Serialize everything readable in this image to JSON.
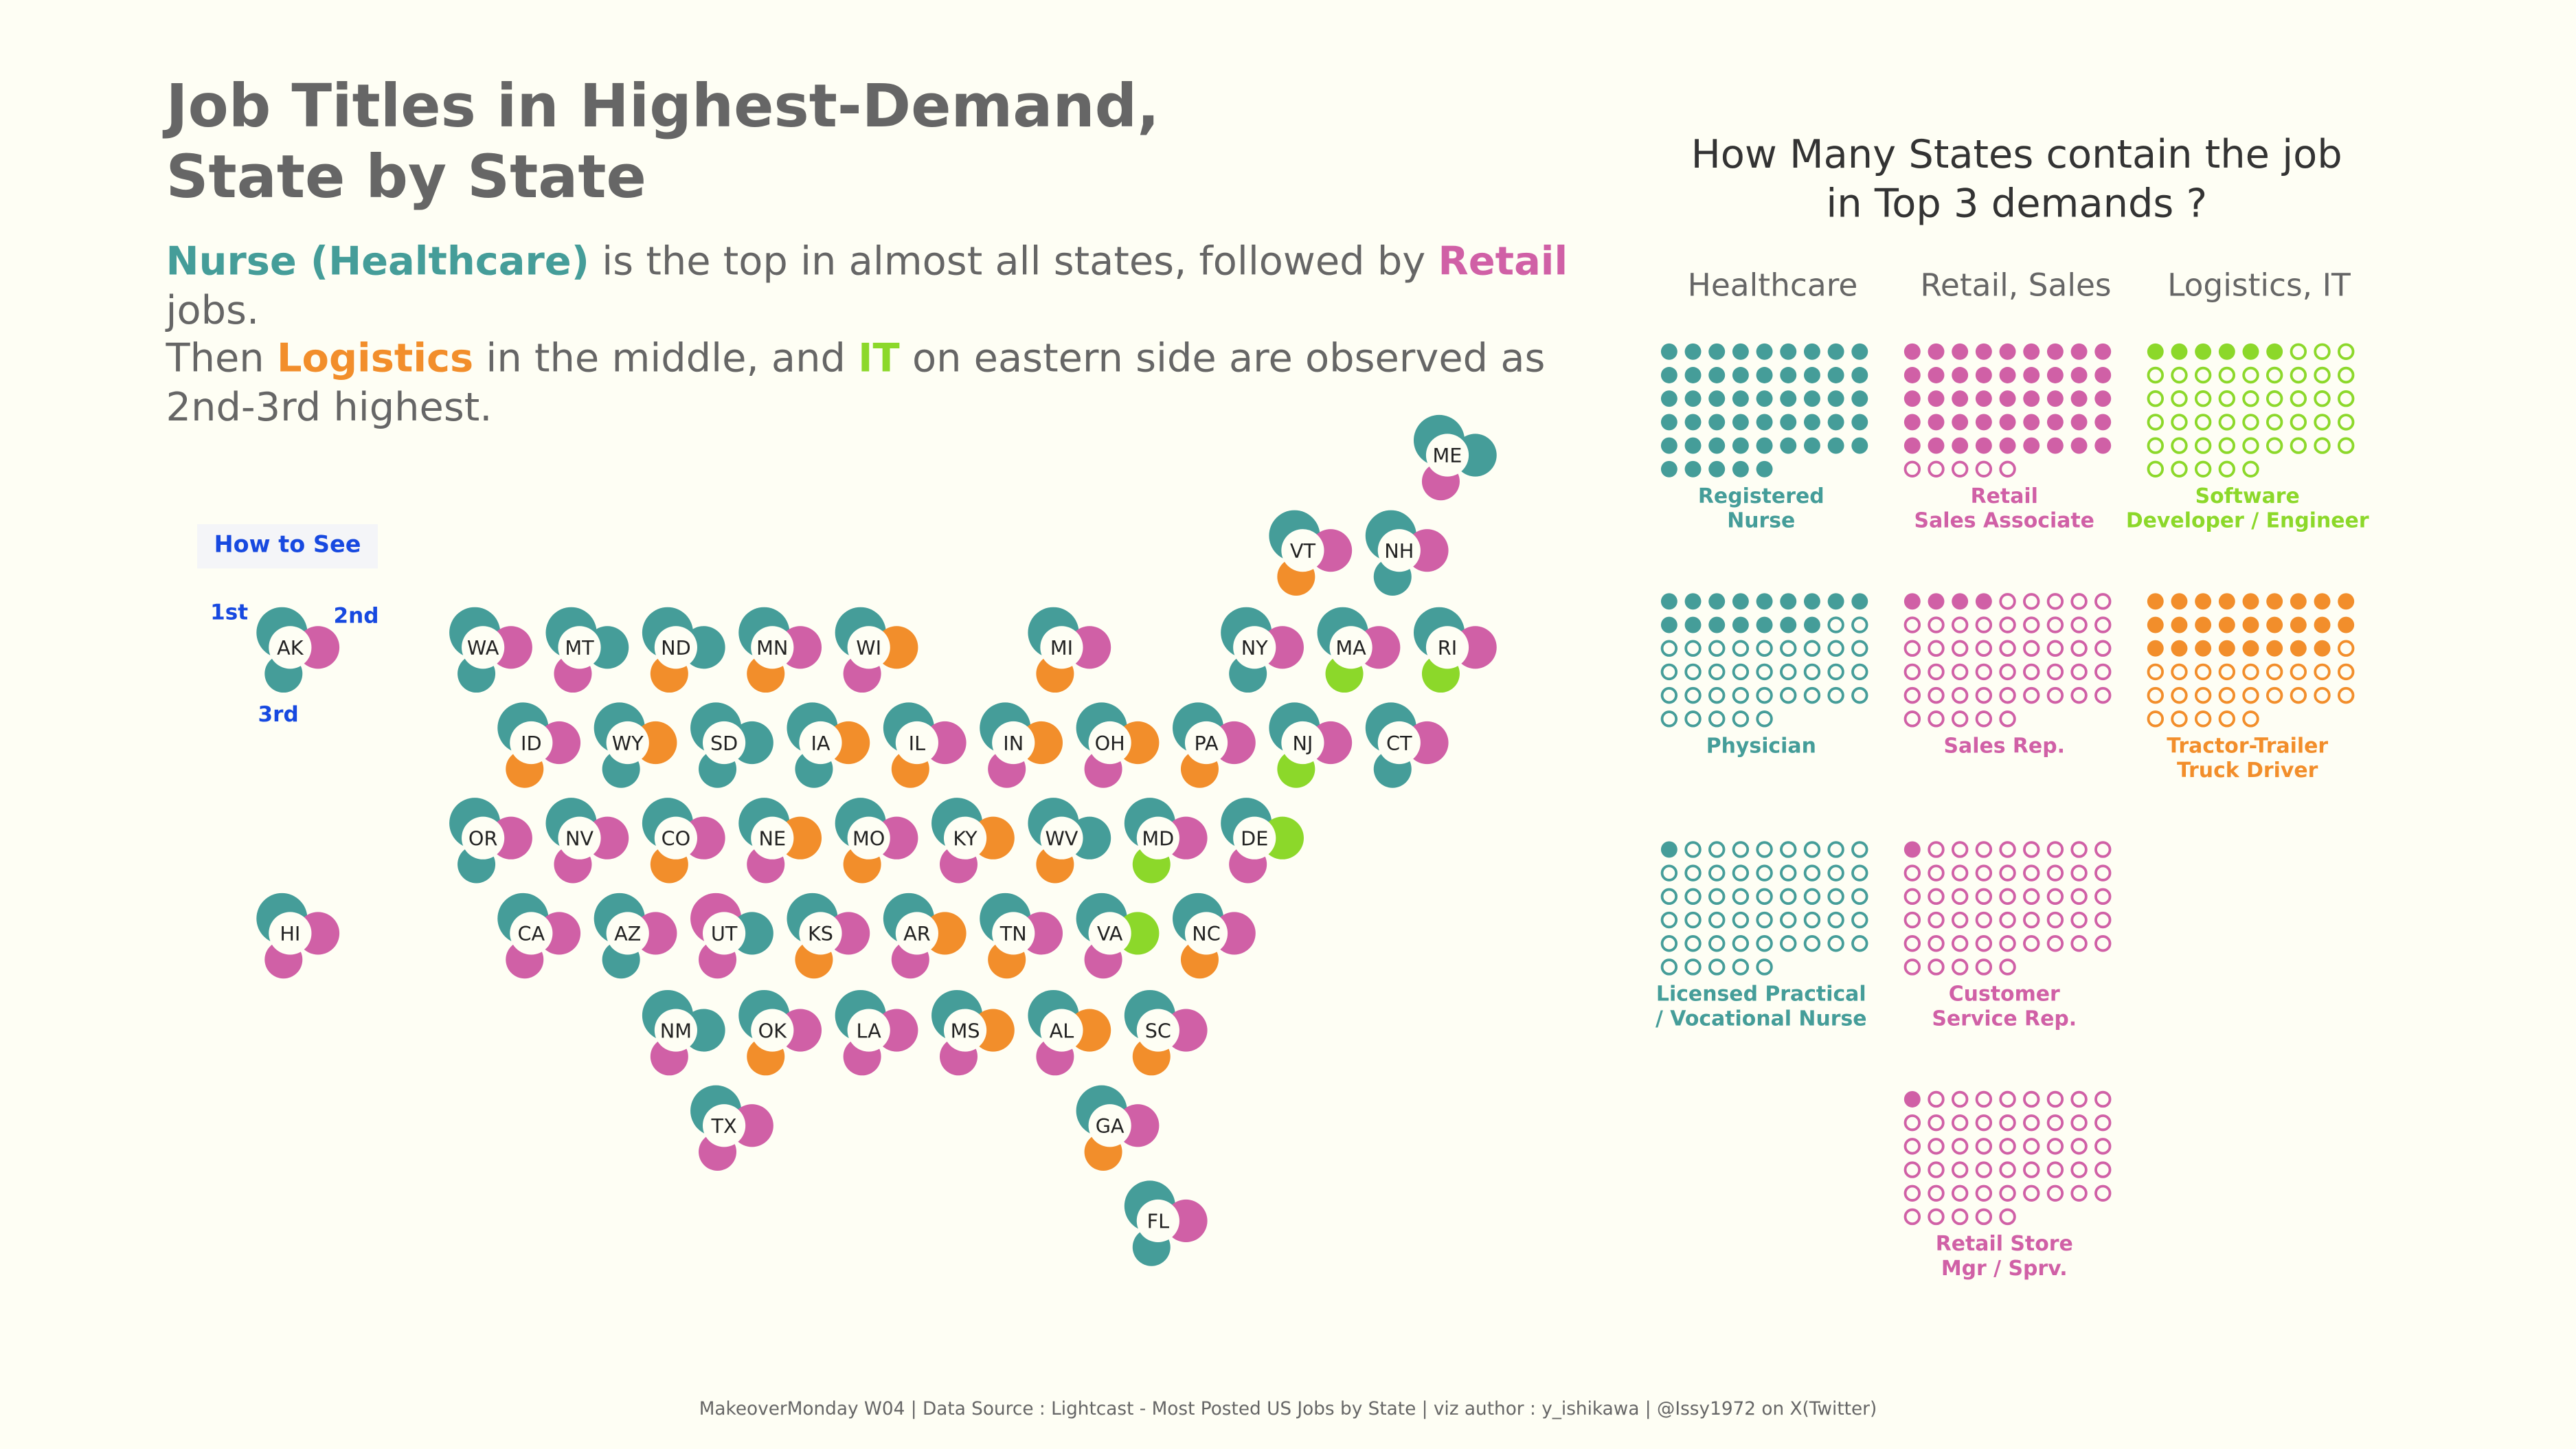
{
  "title": {
    "line1": "Job Titles in Highest-Demand,",
    "line2": "State by State"
  },
  "subtitle": {
    "nurse": "Nurse (Healthcare)",
    "t1": " is the top in almost all states,  followed by ",
    "retail": "Retail",
    "t2": " jobs.",
    "t3": "Then ",
    "logistics": "Logistics",
    "t4": " in the middle, and ",
    "it": "IT",
    "t5": " on eastern side are observed as 2nd-3rd highest."
  },
  "legend": {
    "title": "How to See",
    "first": "1st",
    "second": "2nd",
    "third": "3rd"
  },
  "colors": {
    "healthcare": "#459D99",
    "retail": "#D060A6",
    "logistics": "#F28E2B",
    "it": "#8CD82A",
    "legend_blue": "#1749E0",
    "background": "#FEFEF4"
  },
  "chart_data": [
    {
      "type": "tile-map",
      "rank_order": [
        "1st",
        "2nd",
        "3rd"
      ],
      "category_codes": {
        "H": "healthcare",
        "R": "retail",
        "L": "logistics",
        "I": "it"
      },
      "states": [
        {
          "code": "AK",
          "ranks": [
            "H",
            "R",
            "H"
          ]
        },
        {
          "code": "HI",
          "ranks": [
            "H",
            "R",
            "R"
          ]
        },
        {
          "code": "ME",
          "ranks": [
            "H",
            "H",
            "R"
          ]
        },
        {
          "code": "VT",
          "ranks": [
            "H",
            "R",
            "L"
          ]
        },
        {
          "code": "NH",
          "ranks": [
            "H",
            "R",
            "H"
          ]
        },
        {
          "code": "WA",
          "ranks": [
            "H",
            "R",
            "H"
          ]
        },
        {
          "code": "MT",
          "ranks": [
            "H",
            "H",
            "R"
          ]
        },
        {
          "code": "ND",
          "ranks": [
            "H",
            "H",
            "L"
          ]
        },
        {
          "code": "MN",
          "ranks": [
            "H",
            "R",
            "L"
          ]
        },
        {
          "code": "WI",
          "ranks": [
            "H",
            "L",
            "R"
          ]
        },
        {
          "code": "MI",
          "ranks": [
            "H",
            "R",
            "L"
          ]
        },
        {
          "code": "NY",
          "ranks": [
            "H",
            "R",
            "H"
          ]
        },
        {
          "code": "MA",
          "ranks": [
            "H",
            "R",
            "I"
          ]
        },
        {
          "code": "RI",
          "ranks": [
            "H",
            "R",
            "I"
          ]
        },
        {
          "code": "ID",
          "ranks": [
            "H",
            "R",
            "L"
          ]
        },
        {
          "code": "WY",
          "ranks": [
            "H",
            "L",
            "H"
          ]
        },
        {
          "code": "SD",
          "ranks": [
            "H",
            "H",
            "H"
          ]
        },
        {
          "code": "IA",
          "ranks": [
            "H",
            "L",
            "H"
          ]
        },
        {
          "code": "IL",
          "ranks": [
            "H",
            "R",
            "L"
          ]
        },
        {
          "code": "IN",
          "ranks": [
            "H",
            "L",
            "R"
          ]
        },
        {
          "code": "OH",
          "ranks": [
            "H",
            "L",
            "R"
          ]
        },
        {
          "code": "PA",
          "ranks": [
            "H",
            "R",
            "L"
          ]
        },
        {
          "code": "NJ",
          "ranks": [
            "H",
            "R",
            "I"
          ]
        },
        {
          "code": "CT",
          "ranks": [
            "H",
            "R",
            "H"
          ]
        },
        {
          "code": "OR",
          "ranks": [
            "H",
            "R",
            "H"
          ]
        },
        {
          "code": "NV",
          "ranks": [
            "H",
            "R",
            "R"
          ]
        },
        {
          "code": "CO",
          "ranks": [
            "H",
            "R",
            "L"
          ]
        },
        {
          "code": "NE",
          "ranks": [
            "H",
            "L",
            "R"
          ]
        },
        {
          "code": "MO",
          "ranks": [
            "H",
            "R",
            "L"
          ]
        },
        {
          "code": "KY",
          "ranks": [
            "H",
            "L",
            "R"
          ]
        },
        {
          "code": "WV",
          "ranks": [
            "H",
            "H",
            "L"
          ]
        },
        {
          "code": "MD",
          "ranks": [
            "H",
            "R",
            "I"
          ]
        },
        {
          "code": "DE",
          "ranks": [
            "H",
            "I",
            "R"
          ]
        },
        {
          "code": "CA",
          "ranks": [
            "H",
            "R",
            "R"
          ]
        },
        {
          "code": "AZ",
          "ranks": [
            "H",
            "R",
            "H"
          ]
        },
        {
          "code": "UT",
          "ranks": [
            "R",
            "H",
            "R"
          ]
        },
        {
          "code": "KS",
          "ranks": [
            "H",
            "R",
            "L"
          ]
        },
        {
          "code": "AR",
          "ranks": [
            "H",
            "L",
            "R"
          ]
        },
        {
          "code": "TN",
          "ranks": [
            "H",
            "R",
            "L"
          ]
        },
        {
          "code": "VA",
          "ranks": [
            "H",
            "I",
            "R"
          ]
        },
        {
          "code": "NC",
          "ranks": [
            "H",
            "R",
            "L"
          ]
        },
        {
          "code": "NM",
          "ranks": [
            "H",
            "H",
            "R"
          ]
        },
        {
          "code": "OK",
          "ranks": [
            "H",
            "R",
            "L"
          ]
        },
        {
          "code": "LA",
          "ranks": [
            "H",
            "R",
            "R"
          ]
        },
        {
          "code": "MS",
          "ranks": [
            "H",
            "L",
            "R"
          ]
        },
        {
          "code": "AL",
          "ranks": [
            "H",
            "L",
            "R"
          ]
        },
        {
          "code": "SC",
          "ranks": [
            "H",
            "R",
            "L"
          ]
        },
        {
          "code": "TX",
          "ranks": [
            "H",
            "R",
            "R"
          ]
        },
        {
          "code": "GA",
          "ranks": [
            "H",
            "R",
            "L"
          ]
        },
        {
          "code": "FL",
          "ranks": [
            "H",
            "R",
            "H"
          ]
        }
      ]
    },
    {
      "type": "waffle",
      "title": "How Many States contain the job\nin Top 3 demands ?",
      "total": 50,
      "groups": [
        {
          "name": "Healthcare",
          "jobs": [
            {
              "label": "Registered\nNurse",
              "value": 50,
              "category": "healthcare"
            },
            {
              "label": "Physician",
              "value": 16,
              "category": "healthcare"
            },
            {
              "label": "Licensed Practical\n/ Vocational Nurse",
              "value": 1,
              "category": "healthcare"
            }
          ]
        },
        {
          "name": "Retail, Sales",
          "jobs": [
            {
              "label": "Retail\nSales Associate",
              "value": 45,
              "category": "retail"
            },
            {
              "label": "Sales Rep.",
              "value": 4,
              "category": "retail"
            },
            {
              "label": "Customer\nService Rep.",
              "value": 1,
              "category": "retail"
            },
            {
              "label": "Retail Store\nMgr / Sprv.",
              "value": 1,
              "category": "retail"
            }
          ]
        },
        {
          "name": "Logistics, IT",
          "jobs": [
            {
              "label": "Software\nDeveloper / Engineer",
              "value": 6,
              "category": "it"
            },
            {
              "label": "Tractor-Trailer\nTruck Driver",
              "value": 26,
              "category": "logistics"
            }
          ]
        }
      ]
    }
  ],
  "footer": "MakeoverMonday W04 | Data Source : Lightcast - Most Posted US Jobs by State | viz author : y_ishikawa | @Issy1972 on X(Twitter)"
}
